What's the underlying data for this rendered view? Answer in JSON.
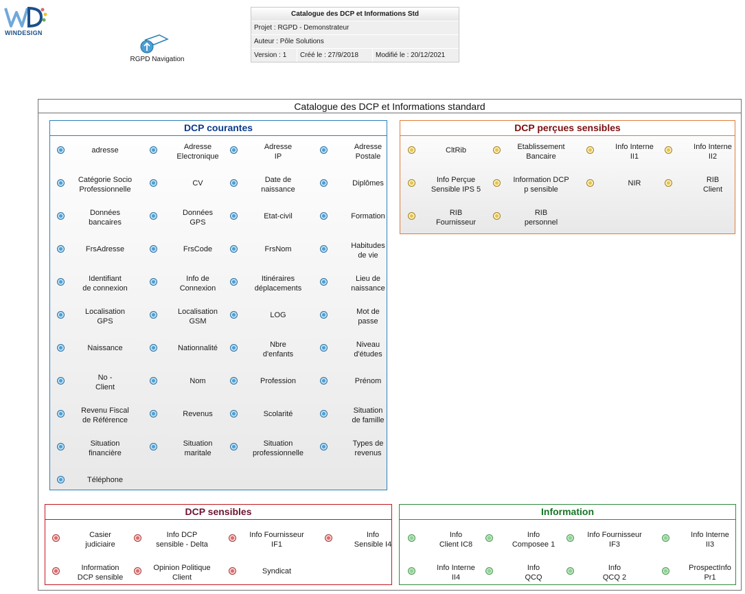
{
  "logo": {
    "text": "WINDESIGN"
  },
  "navigation": {
    "label": "RGPD Navigation"
  },
  "info_table": {
    "title": "Catalogue des DCP et Informations Std",
    "projet": "Projet : RGPD - Demonstrateur",
    "auteur": "Auteur : Pôle Solutions",
    "version": "Version : 1",
    "cree": "Créé le : 27/9/2018",
    "modifie": "Modifié le : 20/12/2021"
  },
  "main": {
    "title": "Catalogue des DCP et Informations standard"
  },
  "groups": {
    "courantes": {
      "title": "DCP courantes",
      "items": [
        "adresse",
        "Adresse\nElectronique",
        "Adresse\nIP",
        "Adresse\nPostale",
        "Catégorie Socio\nProfessionnelle",
        "CV",
        "Date de\nnaissance",
        "Diplômes",
        "Données\nbancaires",
        "Données\nGPS",
        "Etat-civil",
        "Formation",
        "FrsAdresse",
        "FrsCode",
        "FrsNom",
        "Habitudes\nde vie",
        "Identifiant\nde connexion",
        "Info de\nConnexion",
        "Itinéraires\ndéplacements",
        "Lieu de\nnaissance",
        "Localisation\nGPS",
        "Localisation\nGSM",
        "LOG",
        "Mot de\npasse",
        "Naissance",
        "Nationnalité",
        "Nbre\nd'enfants",
        "Niveau\nd'études",
        "No -\nClient",
        "Nom",
        "Profession",
        "Prénom",
        "Revenu Fiscal\nde Référence",
        "Revenus",
        "Scolarité",
        "Situation\nde famille",
        "Situation\nfinancière",
        "Situation\nmaritale",
        "Situation\nprofessionnelle",
        "Types de\nrevenus",
        "Téléphone"
      ]
    },
    "percues": {
      "title": "DCP perçues sensibles",
      "items": [
        "CltRib",
        "Etablissement\nBancaire",
        "Info Interne\nII1",
        "Info Interne\nII2",
        "Info Perçue\nSensible IPS 5",
        "Information DCP\np sensible",
        "NIR",
        "RIB\nClient",
        "RIB\nFournisseur",
        "RIB\npersonnel"
      ]
    },
    "sensibles": {
      "title": "DCP sensibles",
      "items": [
        "Casier\njudiciaire",
        "Info DCP\nsensible - Delta",
        "Info Fournisseur\nIF1",
        "Info\nSensible I4",
        "Information\nDCP sensible",
        "Opinion Politique\nClient",
        "Syndicat"
      ]
    },
    "information": {
      "title": "Information",
      "items": [
        "Info\nClient IC8",
        "Info\nComposee 1",
        "Info Fournisseur\nIF3",
        "Info Interne\nII3",
        "Info Interne\nII4",
        "Info\nQCQ",
        "Info\nQCQ 2",
        "ProspectInfo\nPr1"
      ]
    }
  }
}
